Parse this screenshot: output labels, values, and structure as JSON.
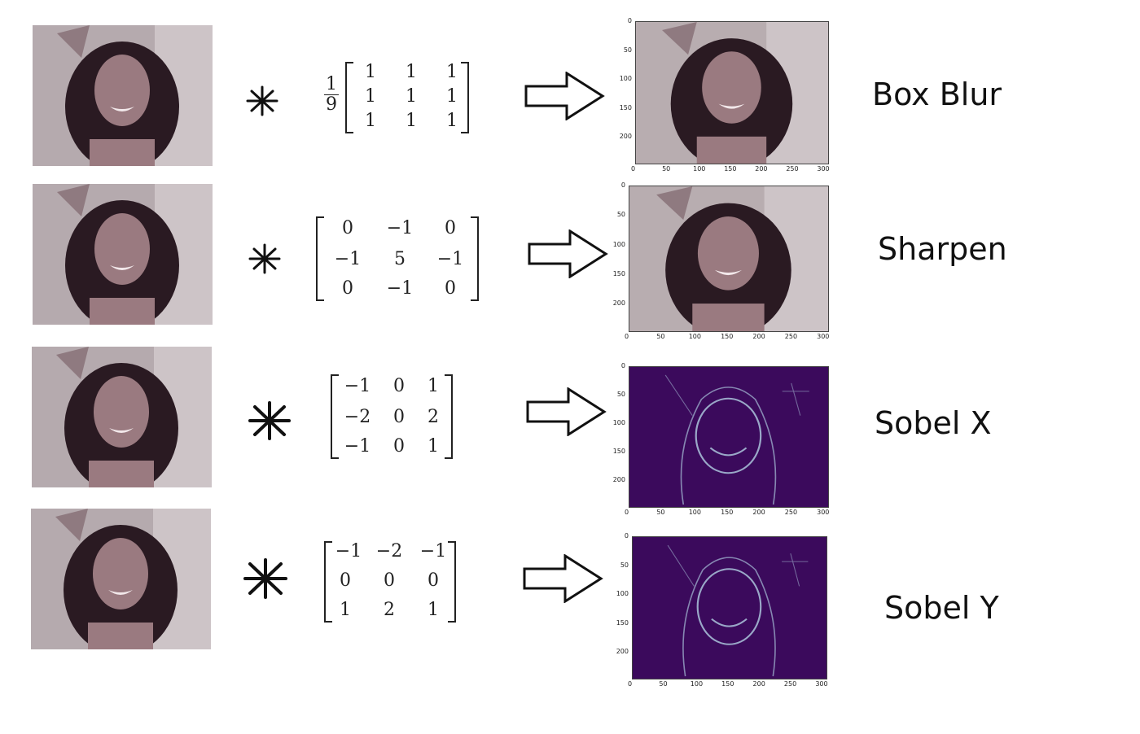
{
  "rows": [
    {
      "filter_label": "Box Blur",
      "operator": "*",
      "scale": {
        "numerator": "1",
        "denominator": "9"
      },
      "kernel": [
        [
          "1",
          "1",
          "1"
        ],
        [
          "1",
          "1",
          "1"
        ],
        [
          "1",
          "1",
          "1"
        ]
      ],
      "output_style": "photo"
    },
    {
      "filter_label": "Sharpen",
      "operator": "*",
      "kernel": [
        [
          "0",
          "−1",
          "0"
        ],
        [
          "−1",
          "5",
          "−1"
        ],
        [
          "0",
          "−1",
          "0"
        ]
      ],
      "output_style": "photo"
    },
    {
      "filter_label": "Sobel X",
      "operator": "*",
      "kernel": [
        [
          "−1",
          "0",
          "1"
        ],
        [
          "−2",
          "0",
          "2"
        ],
        [
          "−1",
          "0",
          "1"
        ]
      ],
      "output_style": "edges"
    },
    {
      "filter_label": "Sobel Y",
      "operator": "*",
      "kernel": [
        [
          "−1",
          "−2",
          "−1"
        ],
        [
          "0",
          "0",
          "0"
        ],
        [
          "1",
          "2",
          "1"
        ]
      ],
      "output_style": "edges"
    }
  ],
  "plot_axes": {
    "x_ticks": [
      "0",
      "50",
      "100",
      "150",
      "200",
      "250",
      "300"
    ],
    "y_ticks": [
      "0",
      "50",
      "100",
      "150",
      "200"
    ]
  },
  "colors": {
    "photo_background": "#b8adb0",
    "hair": "#2a1a22",
    "skin": "#9a7a80",
    "edge_background": "#3b0a5c",
    "edge_lines": "#9aa8c8"
  },
  "icons": {
    "operator": "convolution-star-icon",
    "arrow": "right-arrow-icon"
  }
}
